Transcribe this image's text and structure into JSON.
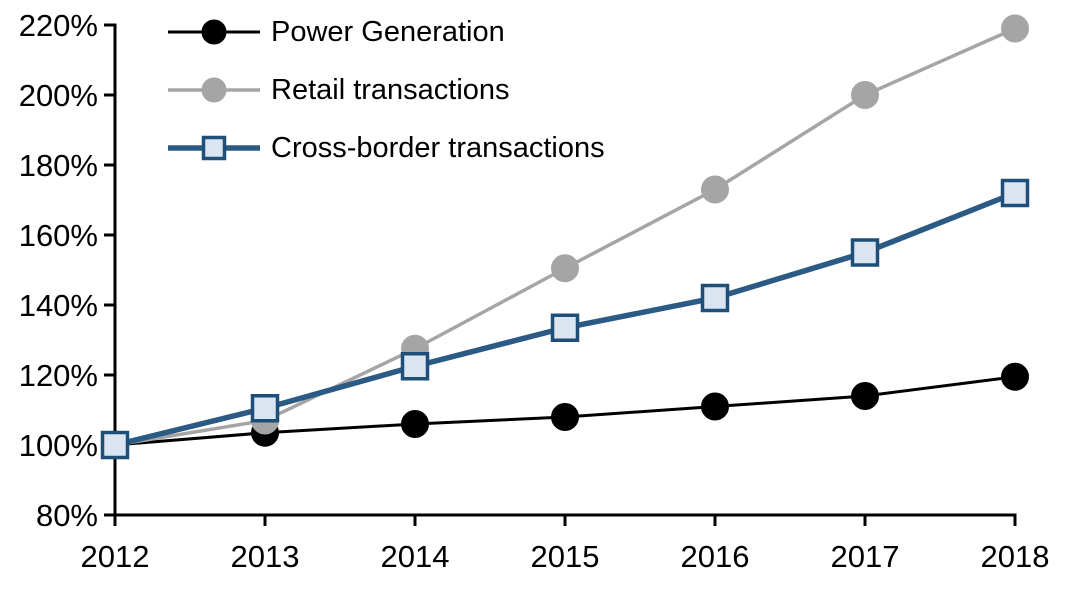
{
  "chart_data": {
    "type": "line",
    "title": "",
    "xlabel": "",
    "ylabel": "",
    "grid": false,
    "legend_position": "top-left",
    "x": [
      2012,
      2013,
      2014,
      2015,
      2016,
      2017,
      2018
    ],
    "x_labels": [
      "2012",
      "2013",
      "2014",
      "2015",
      "2016",
      "2017",
      "2018"
    ],
    "ylim": [
      80,
      220
    ],
    "ytick_values": [
      80,
      100,
      120,
      140,
      160,
      180,
      200,
      220
    ],
    "ytick_labels": [
      "80%",
      "100%",
      "120%",
      "140%",
      "160%",
      "180%",
      "200%",
      "220%"
    ],
    "axis_color": "#000000",
    "series": [
      {
        "name": "Power Generation",
        "marker": "circle",
        "color": "#000000",
        "marker_fill": "#000000",
        "marker_border": "#000000",
        "values": [
          100,
          103.5,
          106,
          108,
          111,
          114,
          119.5
        ]
      },
      {
        "name": "Retail transactions",
        "marker": "circle",
        "color": "#A5A5A5",
        "marker_fill": "#A5A5A5",
        "marker_border": "#A5A5A5",
        "values": [
          100,
          107,
          127.5,
          150.5,
          173,
          200,
          219
        ]
      },
      {
        "name": "Cross-border transactions",
        "marker": "square",
        "color": "#2B5A84",
        "marker_fill": "#DBE5F1",
        "marker_border": "#1F4E79",
        "values": [
          100,
          110.5,
          122.5,
          133.5,
          142,
          155,
          172
        ]
      }
    ]
  }
}
